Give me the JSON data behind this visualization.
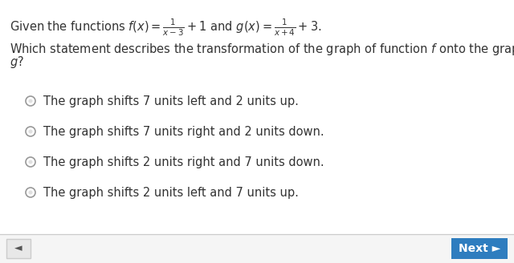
{
  "background_color": "#ffffff",
  "border_color": "#cccccc",
  "text_color": "#333333",
  "radio_color": "#999999",
  "nav_button_color": "#2e7dbf",
  "nav_button_text": "Next ►",
  "back_button_text": "◄",
  "bottom_bar_color": "#ffffff",
  "font_size_formula": 10.5,
  "font_size_question": 10.5,
  "font_size_options": 10.5,
  "options": [
    "The graph shifts 7 units left and 2 units up.",
    "The graph shifts 7 units right and 2 units down.",
    "The graph shifts 2 units right and 7 units down.",
    "The graph shifts 2 units left and 7 units up."
  ],
  "figsize": [
    6.4,
    3.28
  ],
  "dpi": 100
}
